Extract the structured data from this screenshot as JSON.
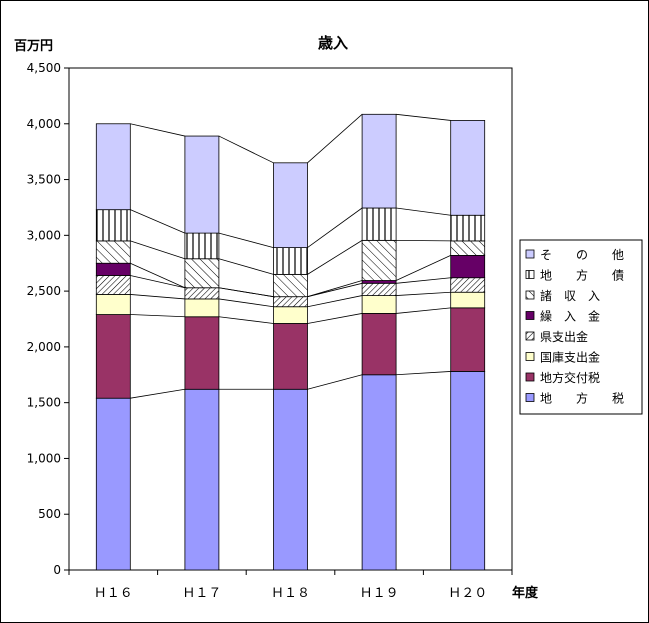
{
  "chart_data": {
    "type": "bar",
    "stacked": true,
    "title": "歳入",
    "ylabel": "百万円",
    "xlabel": "年度",
    "categories": [
      "Ｈ１６",
      "Ｈ１７",
      "Ｈ１８",
      "Ｈ１９",
      "Ｈ２０"
    ],
    "ylim": [
      0,
      4500
    ],
    "yticks": [
      {
        "value": 0,
        "label": "0"
      },
      {
        "value": 500,
        "label": "500"
      },
      {
        "value": 1000,
        "label": "1,000"
      },
      {
        "value": 1500,
        "label": "1,500"
      },
      {
        "value": 2000,
        "label": "2,000"
      },
      {
        "value": 2500,
        "label": "2,500"
      },
      {
        "value": 3000,
        "label": "3,000"
      },
      {
        "value": 3500,
        "label": "3,500"
      },
      {
        "value": 4000,
        "label": "4,000"
      },
      {
        "value": 4500,
        "label": "4,500"
      }
    ],
    "grid": false,
    "legend_position": "right",
    "series_lines": true,
    "series": [
      {
        "name": "地　　方　　税",
        "color": "#9999ff",
        "pattern": "solid",
        "values": [
          1540,
          1620,
          1620,
          1750,
          1780
        ]
      },
      {
        "name": "地方交付税",
        "color": "#993366",
        "pattern": "solid",
        "values": [
          750,
          650,
          590,
          550,
          570
        ]
      },
      {
        "name": "国庫支出金",
        "color": "#ffffcc",
        "pattern": "solid",
        "values": [
          180,
          160,
          150,
          160,
          140
        ]
      },
      {
        "name": "県支出金",
        "color": "#ffffff",
        "pattern": "diag-dense",
        "values": [
          170,
          100,
          90,
          110,
          130
        ]
      },
      {
        "name": "繰　入　金",
        "color": "#660066",
        "pattern": "solid",
        "values": [
          110,
          0,
          0,
          25,
          200
        ]
      },
      {
        "name": "諸　収　入",
        "color": "#ffffff",
        "pattern": "diag-wide",
        "values": [
          200,
          260,
          200,
          360,
          130
        ]
      },
      {
        "name": "地　　方　　債",
        "color": "#ffffff",
        "pattern": "vertical",
        "values": [
          280,
          230,
          240,
          290,
          230
        ]
      },
      {
        "name": "そ　　の　　他",
        "color": "#ccccff",
        "pattern": "solid",
        "values": [
          770,
          870,
          760,
          840,
          850
        ]
      }
    ]
  }
}
